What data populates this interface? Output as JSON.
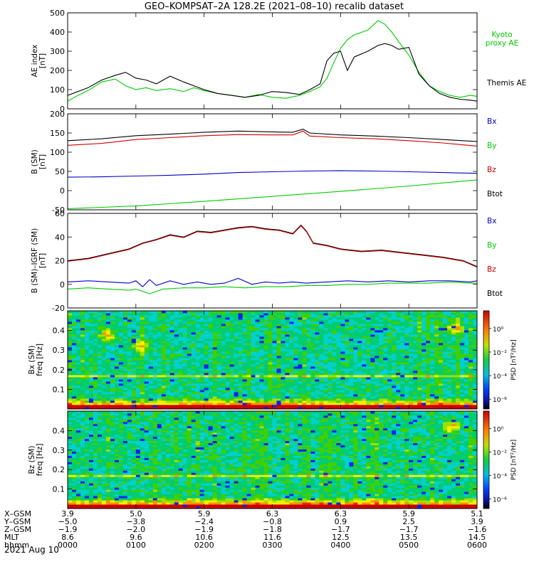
{
  "figure": {
    "title": "GEO–KOMPSAT–2A 128.2E (2021–08–10) recalib dataset",
    "date_label": "2021 Aug 10"
  },
  "chart_data": [
    {
      "type": "line",
      "panel": "ae_index",
      "ylabel": [
        "AE index",
        "[nT]"
      ],
      "ylim": [
        0,
        500
      ],
      "yticks": [
        0,
        100,
        200,
        300,
        400,
        500
      ],
      "xlim": [
        0,
        6
      ],
      "series": [
        {
          "name": "Kyoto proxy AE",
          "label_lines": [
            "Kyoto",
            "proxy AE"
          ],
          "color": "#00cc00",
          "x": [
            0,
            0.15,
            0.3,
            0.5,
            0.7,
            0.85,
            1.0,
            1.15,
            1.3,
            1.5,
            1.7,
            1.85,
            2.0,
            2.2,
            2.4,
            2.6,
            2.8,
            3.0,
            3.2,
            3.4,
            3.55,
            3.7,
            3.8,
            3.9,
            4.0,
            4.1,
            4.2,
            4.4,
            4.55,
            4.65,
            4.75,
            4.85,
            5.0,
            5.15,
            5.3,
            5.45,
            5.6,
            5.75,
            5.9,
            6.0
          ],
          "y": [
            40,
            70,
            95,
            140,
            155,
            120,
            100,
            110,
            95,
            105,
            90,
            110,
            95,
            80,
            70,
            60,
            75,
            60,
            55,
            70,
            90,
            115,
            160,
            240,
            315,
            360,
            385,
            410,
            460,
            440,
            400,
            350,
            280,
            190,
            120,
            90,
            70,
            60,
            70,
            65
          ]
        },
        {
          "name": "Themis AE",
          "label_lines": [
            "Themis AE"
          ],
          "color": "#000000",
          "x": [
            0,
            0.15,
            0.3,
            0.5,
            0.7,
            0.85,
            1.0,
            1.15,
            1.3,
            1.5,
            1.7,
            1.85,
            2.0,
            2.2,
            2.4,
            2.6,
            2.8,
            3.0,
            3.2,
            3.4,
            3.55,
            3.7,
            3.8,
            3.9,
            4.0,
            4.1,
            4.2,
            4.4,
            4.55,
            4.65,
            4.75,
            4.85,
            5.0,
            5.15,
            5.3,
            5.45,
            5.6,
            5.75,
            5.9,
            6.0
          ],
          "y": [
            70,
            90,
            110,
            150,
            175,
            190,
            160,
            150,
            130,
            170,
            140,
            120,
            100,
            80,
            70,
            60,
            70,
            90,
            85,
            75,
            100,
            130,
            250,
            290,
            300,
            200,
            270,
            300,
            330,
            340,
            330,
            310,
            320,
            180,
            120,
            80,
            60,
            50,
            45,
            40
          ]
        }
      ]
    },
    {
      "type": "line",
      "panel": "b_sm",
      "ylabel": [
        "B (SM)",
        "[nT]"
      ],
      "ylim": [
        -50,
        200
      ],
      "yticks": [
        -50,
        0,
        50,
        100,
        150,
        200
      ],
      "xlim": [
        0,
        6
      ],
      "legend": [
        {
          "name": "Bx",
          "color": "#0000cc"
        },
        {
          "name": "By",
          "color": "#00cc00"
        },
        {
          "name": "Bz",
          "color": "#cc0000"
        },
        {
          "name": "Btot",
          "color": "#000000"
        }
      ],
      "series": [
        {
          "name": "Btot",
          "color": "#000000",
          "x": [
            0,
            0.5,
            1.0,
            1.5,
            2.0,
            2.5,
            3.0,
            3.3,
            3.45,
            3.55,
            4.0,
            4.5,
            5.0,
            5.5,
            6.0
          ],
          "y": [
            130,
            135,
            143,
            147,
            152,
            155,
            153,
            152,
            160,
            150,
            145,
            142,
            138,
            133,
            128
          ]
        },
        {
          "name": "Bz",
          "color": "#cc0000",
          "x": [
            0,
            0.5,
            1.0,
            1.5,
            2.0,
            2.5,
            3.0,
            3.3,
            3.45,
            3.55,
            4.0,
            4.5,
            5.0,
            5.5,
            6.0
          ],
          "y": [
            118,
            123,
            133,
            138,
            143,
            146,
            145,
            145,
            155,
            142,
            138,
            135,
            130,
            124,
            116
          ]
        },
        {
          "name": "Bx",
          "color": "#0000cc",
          "x": [
            0,
            0.5,
            1.0,
            1.5,
            2.0,
            2.5,
            3.0,
            3.5,
            4.0,
            4.5,
            5.0,
            5.5,
            6.0
          ],
          "y": [
            35,
            36,
            38,
            40,
            43,
            47,
            49,
            51,
            52,
            51,
            49,
            47,
            45
          ]
        },
        {
          "name": "By",
          "color": "#00cc00",
          "x": [
            0,
            1.0,
            2.0,
            3.0,
            4.0,
            5.0,
            6.0
          ],
          "y": [
            -47,
            -40,
            -28,
            -15,
            -2,
            12,
            28
          ]
        }
      ]
    },
    {
      "type": "line",
      "panel": "b_minus_igrf",
      "ylabel": [
        "B (SM)–IGRF (SM)",
        "[nT]"
      ],
      "ylim": [
        -20,
        60
      ],
      "yticks": [
        -20,
        0,
        20,
        40,
        60
      ],
      "xlim": [
        0,
        6
      ],
      "legend": [
        {
          "name": "Bx",
          "color": "#0000cc"
        },
        {
          "name": "By",
          "color": "#00cc00"
        },
        {
          "name": "Bz",
          "color": "#cc0000"
        },
        {
          "name": "Btot",
          "color": "#000000"
        }
      ],
      "series": [
        {
          "name": "Btot",
          "color": "#000000",
          "x": [
            0,
            0.3,
            0.6,
            0.9,
            1.1,
            1.3,
            1.5,
            1.7,
            1.9,
            2.1,
            2.3,
            2.5,
            2.7,
            2.9,
            3.1,
            3.3,
            3.42,
            3.5,
            3.6,
            3.8,
            4.0,
            4.3,
            4.6,
            4.9,
            5.2,
            5.5,
            5.8,
            6.0
          ],
          "y": [
            20,
            22,
            26,
            30,
            35,
            38,
            42,
            40,
            45,
            44,
            46,
            48,
            49,
            47,
            46,
            43,
            50,
            45,
            35,
            33,
            30,
            28,
            29,
            27,
            25,
            23,
            20,
            15
          ]
        },
        {
          "name": "Bz",
          "color": "#cc0000",
          "x": [
            0,
            0.3,
            0.6,
            0.9,
            1.1,
            1.3,
            1.5,
            1.7,
            1.9,
            2.1,
            2.3,
            2.5,
            2.7,
            2.9,
            3.1,
            3.3,
            3.42,
            3.5,
            3.6,
            3.8,
            4.0,
            4.3,
            4.6,
            4.9,
            5.2,
            5.5,
            5.8,
            6.0
          ],
          "y": [
            19.5,
            21.5,
            25.5,
            29.5,
            34.5,
            37.5,
            41.5,
            39.5,
            44.5,
            43.5,
            45.5,
            47.5,
            48.5,
            46.5,
            45.5,
            42.5,
            49.5,
            44.5,
            34.5,
            32.5,
            29.5,
            27.5,
            28.5,
            26.5,
            24.5,
            22.5,
            19.5,
            14.5
          ]
        },
        {
          "name": "Bx",
          "color": "#0000cc",
          "x": [
            0,
            0.3,
            0.6,
            0.9,
            1.0,
            1.1,
            1.2,
            1.3,
            1.5,
            1.7,
            1.9,
            2.1,
            2.3,
            2.5,
            2.7,
            2.9,
            3.1,
            3.3,
            3.5,
            3.8,
            4.1,
            4.4,
            4.7,
            5.0,
            5.3,
            5.6,
            5.9,
            6.0
          ],
          "y": [
            2,
            3,
            2,
            1,
            3,
            -2,
            4,
            -1,
            3,
            0,
            2,
            0,
            1,
            5,
            0,
            2,
            1,
            2,
            1,
            2,
            3,
            2,
            3,
            2,
            3,
            3,
            2,
            3
          ]
        },
        {
          "name": "By",
          "color": "#00cc00",
          "x": [
            0,
            0.3,
            0.6,
            0.9,
            1.0,
            1.1,
            1.2,
            1.4,
            1.7,
            2.0,
            2.3,
            2.6,
            2.9,
            3.2,
            3.5,
            3.8,
            4.1,
            4.4,
            4.7,
            5.0,
            5.3,
            5.6,
            5.9,
            6.0
          ],
          "y": [
            -4,
            -3,
            -4,
            -5,
            -4,
            -6,
            -8,
            -4,
            -3,
            -3,
            -2,
            -3,
            -2,
            -2,
            -1,
            -1,
            0,
            0,
            1,
            1,
            1,
            2,
            1,
            1
          ]
        }
      ]
    },
    {
      "type": "heatmap",
      "panel": "bx_spectrogram",
      "ylabel": [
        "Bx (SM)",
        "freq [Hz]"
      ],
      "ylim": [
        0,
        0.5
      ],
      "yticks": [
        0.1,
        0.2,
        0.3,
        0.4
      ],
      "xlim": [
        0,
        6
      ],
      "colorbar": {
        "label": "PSD [nT²/Hz]",
        "ticks": [
          "10⁰",
          "10⁻²",
          "10⁻⁴",
          "10⁻⁶"
        ]
      },
      "hot_spots": [
        {
          "x": 0.55,
          "freq": 0.38
        },
        {
          "x": 1.05,
          "freq": 0.32
        },
        {
          "x": 5.65,
          "freq": 0.41
        }
      ]
    },
    {
      "type": "heatmap",
      "panel": "bz_spectrogram",
      "ylabel": [
        "Bz (SM)",
        "freq [Hz]"
      ],
      "ylim": [
        0,
        0.5
      ],
      "yticks": [
        0.1,
        0.2,
        0.3,
        0.4
      ],
      "xlim": [
        0,
        6
      ],
      "colorbar": {
        "label": "PSD [nT²/Hz]",
        "ticks": [
          "10⁰",
          "10⁻²",
          "10⁻⁴",
          "10⁻⁶"
        ]
      },
      "hot_spots": [
        {
          "x": 5.6,
          "freq": 0.42
        }
      ]
    }
  ],
  "ephemeris": {
    "labels": [
      "X–GSM",
      "Y–GSM",
      "Z–GSM",
      "MLT",
      "hhmm"
    ],
    "ticks_x": [
      0,
      1,
      2,
      3,
      4,
      5,
      6
    ],
    "rows": [
      [
        "3.9",
        "5.0",
        "5.9",
        "6.3",
        "6.3",
        "5.9",
        "5.1"
      ],
      [
        "−5.0",
        "−3.8",
        "−2.4",
        "−0.8",
        "0.9",
        "2.5",
        "3.9"
      ],
      [
        "−1.9",
        "−2.0",
        "−1.9",
        "−1.8",
        "−1.7",
        "−1.7",
        "−1.6"
      ],
      [
        "8.6",
        "9.6",
        "10.6",
        "11.6",
        "12.5",
        "13.5",
        "14.5"
      ],
      [
        "0000",
        "0100",
        "0200",
        "0300",
        "0400",
        "0500",
        "0600"
      ]
    ]
  }
}
